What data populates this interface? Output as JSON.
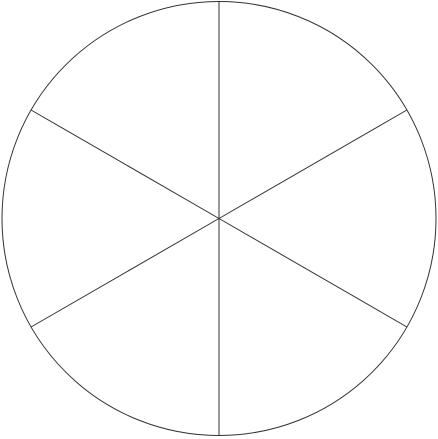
{
  "diagram": {
    "shape": "circle",
    "sector_count": 6,
    "stroke_color": "#333333",
    "fill_color": "#ffffff",
    "background_color": "#ffffff"
  }
}
